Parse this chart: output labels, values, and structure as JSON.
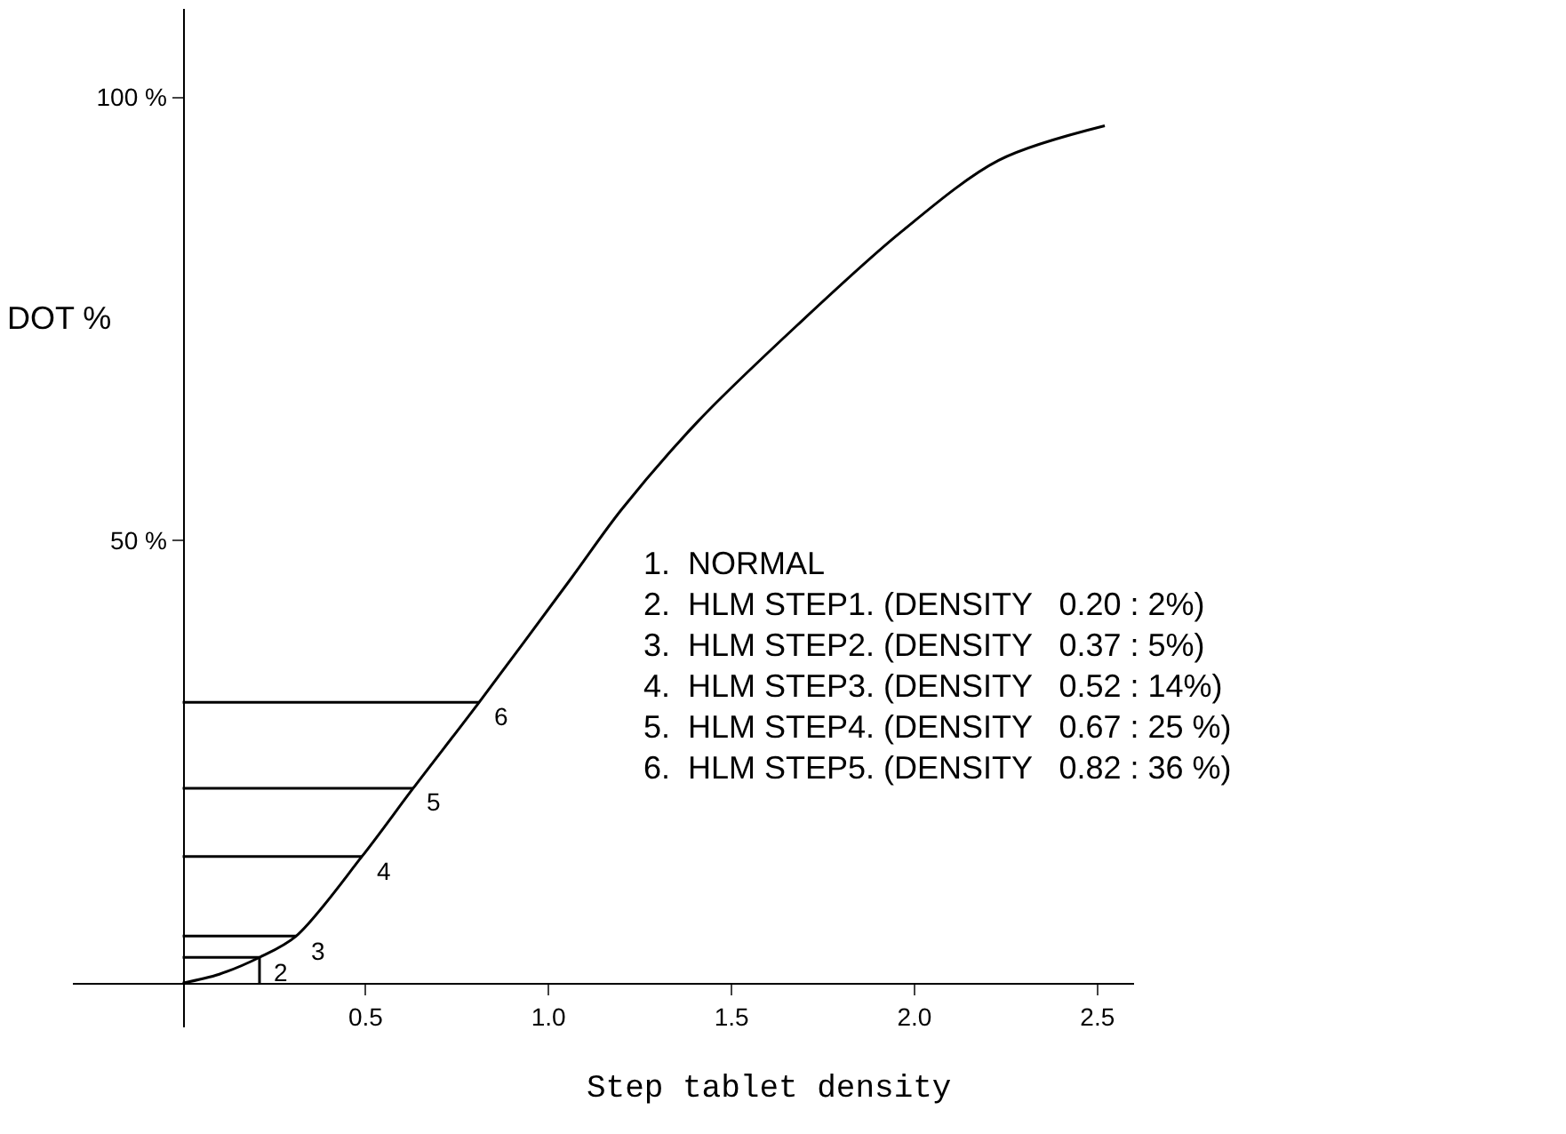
{
  "chart_data": {
    "type": "line",
    "xlabel": "Step tablet density",
    "ylabel": "DOT %",
    "xlim": [
      -0.3,
      2.6
    ],
    "ylim": [
      -5,
      110
    ],
    "xticks": [
      0.5,
      {
        "value": 1.0,
        "label": "1.0"
      },
      1.5,
      {
        "value": 2.0,
        "label": "2.0"
      },
      2.5
    ],
    "yticks": [
      {
        "value": 50,
        "label": "50 %"
      },
      {
        "value": 100,
        "label": "100 %"
      }
    ],
    "marker": "none",
    "line_style": "solid",
    "series": [
      {
        "color": "#000000",
        "x": [
          0,
          0.1,
          0.21,
          0.31,
          0.49,
          0.63,
          0.81,
          1.06,
          1.2,
          1.41,
          1.68,
          1.96,
          2.23,
          2.52
        ],
        "values": [
          0,
          1.0,
          2.9,
          5.3,
          14.3,
          22,
          31.7,
          45.6,
          53.5,
          63.5,
          74.3,
          84.7,
          92.9,
          96.8
        ]
      },
      {
        "color": "#000000",
        "x": [
          0,
          0.21
        ],
        "values": [
          2.9,
          2.9
        ]
      },
      {
        "color": "#000000",
        "x": [
          0.21,
          0.21
        ],
        "values": [
          0,
          2.9
        ]
      },
      {
        "color": "#000000",
        "x": [
          0,
          0.31
        ],
        "values": [
          5.3,
          5.3
        ]
      },
      {
        "color": "#000000",
        "x": [
          0,
          0.49
        ],
        "values": [
          14.3,
          14.3
        ]
      },
      {
        "color": "#000000",
        "x": [
          0,
          0.63
        ],
        "values": [
          22,
          22
        ]
      },
      {
        "color": "#000000",
        "x": [
          0,
          0.81
        ],
        "values": [
          31.7,
          31.7
        ]
      }
    ],
    "annotations": [
      {
        "text": "2",
        "x": 0.21,
        "y": 2.9
      },
      {
        "text": "3",
        "x": 0.31,
        "y": 5.3
      },
      {
        "text": "4",
        "x": 0.49,
        "y": 14.3
      },
      {
        "text": "5",
        "x": 0.63,
        "y": 22
      },
      {
        "text": "6",
        "x": 0.81,
        "y": 31.7
      },
      "1.  NORMAL",
      "2.  HLM STEP1. (DENSITY   0.20 : 2%)",
      "3.  HLM STEP2. (DENSITY   0.37 : 5%)",
      "4.  HLM STEP3. (DENSITY   0.52 : 14%)",
      "5.  HLM STEP4. (DENSITY   0.67 : 25 %)",
      "6.  HLM STEP5. (DENSITY   0.82 : 36 %)"
    ]
  }
}
